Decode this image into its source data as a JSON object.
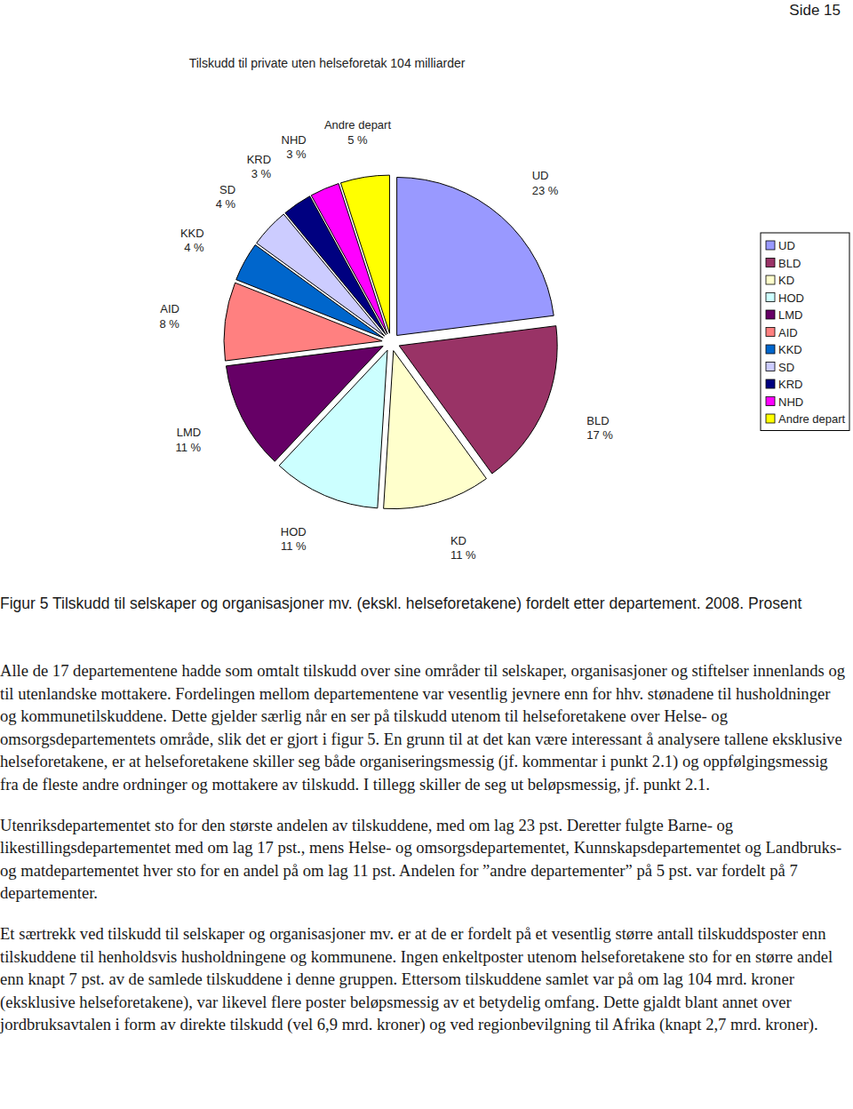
{
  "header": "Side 15",
  "chart_data": {
    "type": "pie",
    "title": "Tilskudd til private uten helseforetak 104 milliarder",
    "categories": [
      "UD",
      "BLD",
      "KD",
      "HOD",
      "LMD",
      "AID",
      "KKD",
      "SD",
      "KRD",
      "NHD",
      "Andre depart"
    ],
    "values": [
      23,
      17,
      11,
      11,
      11,
      8,
      4,
      4,
      3,
      3,
      5
    ],
    "value_labels": [
      "23 %",
      "17 %",
      "11 %",
      "11 %",
      "11 %",
      "8 %",
      "4 %",
      "4 %",
      "3 %",
      "3 %",
      "5 %"
    ],
    "colors": [
      "#9999ff",
      "#993366",
      "#ffffcc",
      "#ccffff",
      "#660066",
      "#ff8080",
      "#0066cc",
      "#ccccff",
      "#000080",
      "#ff00ff",
      "#ffff00"
    ],
    "data_labels": true,
    "legend": "right"
  },
  "caption": "Figur 5 Tilskudd til selskaper og organisasjoner mv. (ekskl. helseforetakene) fordelt etter departement. 2008. Prosent",
  "paragraphs": [
    "Alle de 17 departementene hadde som omtalt tilskudd over sine områder til selskaper, organisasjoner og stiftelser innenlands og til utenlandske mottakere. Fordelingen mellom departementene var vesentlig jevnere enn for hhv. stønadene til husholdninger og kommunetilskuddene. Dette gjelder særlig når en ser på tilskudd utenom til helseforetakene over Helse- og omsorgsdepartementets område, slik det er gjort i figur 5. En grunn til at det kan være interessant å analysere tallene eksklusive helseforetakene, er at helseforetakene skiller seg både organiseringsmessig (jf. kommentar i punkt 2.1) og oppfølgingsmessig fra de fleste andre ordninger og mottakere av tilskudd. I tillegg skiller de seg ut beløpsmessig, jf. punkt 2.1.",
    "Utenriksdepartementet sto for den største andelen av tilskuddene, med om lag 23 pst. Deretter fulgte Barne- og likestillingsdepartementet med om lag 17 pst., mens Helse- og omsorgsdepartementet, Kunnskapsdepartementet og Landbruks- og matdepartementet hver sto for en andel på om lag 11 pst. Andelen for ”andre departementer” på 5 pst. var fordelt på 7 departementer.",
    "Et særtrekk ved tilskudd til selskaper og organisasjoner mv. er at de er fordelt på et vesentlig større antall tilskuddsposter enn tilskuddene til henholdsvis husholdningene og kommunene. Ingen enkeltposter utenom helseforetakene sto for en større andel enn knapt 7 pst. av de samlede tilskuddene i denne gruppen. Ettersom tilskuddene samlet var på om lag 104 mrd. kroner (eksklusive helseforetakene), var likevel flere poster beløpsmessig av et betydelig omfang. Dette gjaldt blant annet over jordbruksavtalen i form av direkte tilskudd (vel 6,9 mrd. kroner) og ved regionbevilgning til Afrika (knapt 2,7 mrd. kroner)."
  ]
}
